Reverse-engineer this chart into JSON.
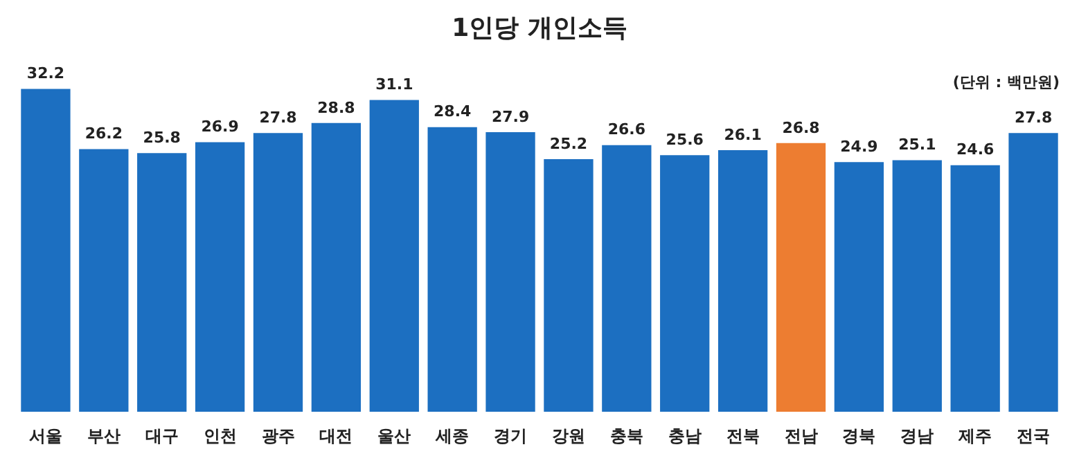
{
  "chart_data": {
    "type": "bar",
    "title": "1인당 개인소득",
    "annotations": [
      "(단위 : 백만원)"
    ],
    "categories": [
      "서울",
      "부산",
      "대구",
      "인천",
      "광주",
      "대전",
      "울산",
      "세종",
      "경기",
      "강원",
      "충북",
      "충남",
      "전북",
      "전남",
      "경북",
      "경남",
      "제주",
      "전국"
    ],
    "values": [
      32.2,
      26.2,
      25.8,
      26.9,
      27.8,
      28.8,
      31.1,
      28.4,
      27.9,
      25.2,
      26.6,
      25.6,
      26.1,
      26.8,
      24.9,
      25.1,
      24.6,
      27.8
    ],
    "colors": [
      "#1c6fc1",
      "#1c6fc1",
      "#1c6fc1",
      "#1c6fc1",
      "#1c6fc1",
      "#1c6fc1",
      "#1c6fc1",
      "#1c6fc1",
      "#1c6fc1",
      "#1c6fc1",
      "#1c6fc1",
      "#1c6fc1",
      "#1c6fc1",
      "#ed7d31",
      "#1c6fc1",
      "#1c6fc1",
      "#1c6fc1",
      "#1c6fc1"
    ],
    "data_labels": true,
    "grid": false,
    "legend": false
  }
}
